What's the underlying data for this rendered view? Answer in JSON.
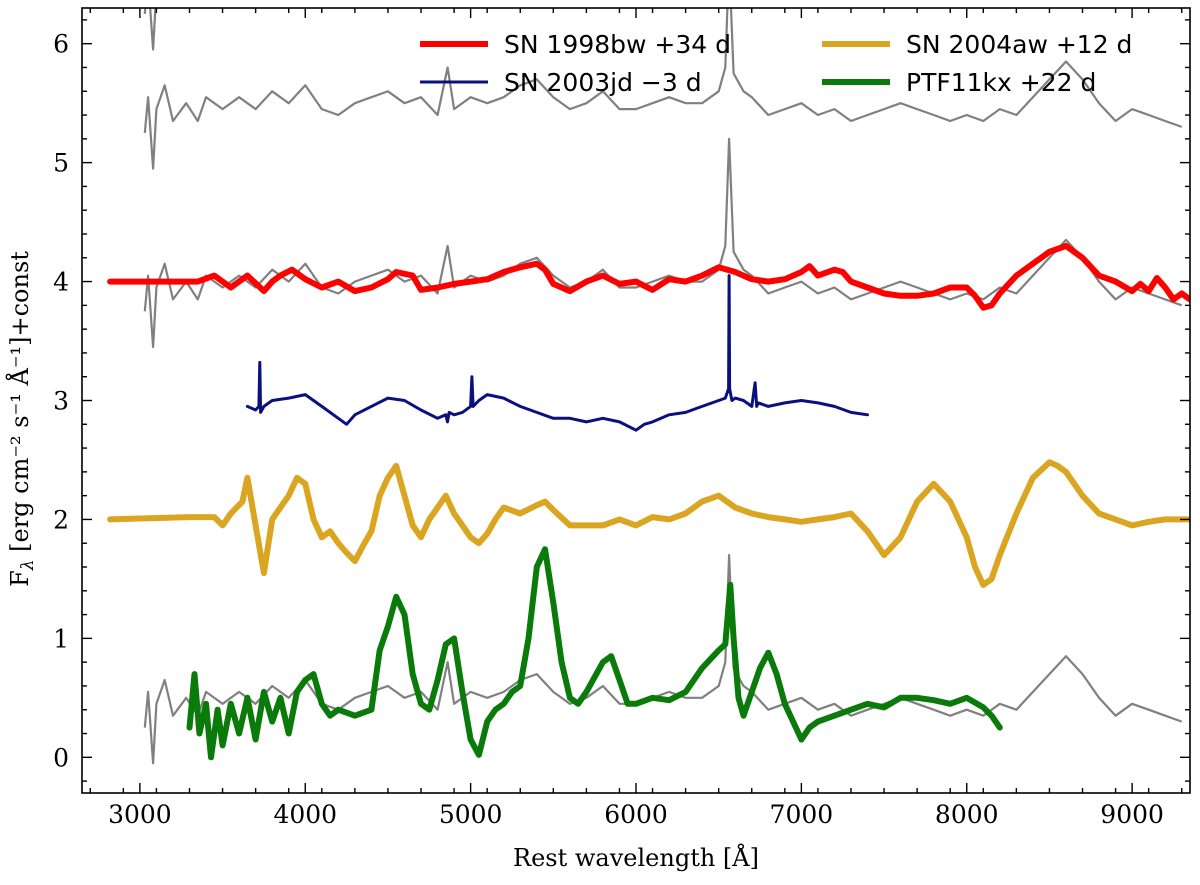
{
  "chart_data": {
    "type": "line",
    "title": "",
    "xlabel": "Rest wavelength [Å]",
    "ylabel_main": "F",
    "ylabel_sub": "λ",
    "ylabel_rest": " [erg cm⁻² s⁻¹ Å⁻¹]+const",
    "xlim": [
      2650,
      9350
    ],
    "ylim": [
      -0.3,
      6.3
    ],
    "x_ticks": [
      3000,
      4000,
      5000,
      6000,
      7000,
      8000,
      9000
    ],
    "x_tick_labels": [
      "3000",
      "4000",
      "5000",
      "6000",
      "7000",
      "8000",
      "9000"
    ],
    "y_ticks": [
      0,
      1,
      2,
      3,
      4,
      5,
      6
    ],
    "y_tick_labels": [
      "0",
      "1",
      "2",
      "3",
      "4",
      "5",
      "6"
    ],
    "legend_position": "top-right",
    "comparison_spectra": {
      "name": "observed spectrum (offset copies)",
      "color": "#808080",
      "offsets": [
        0.0,
        2.5,
        1.5,
        -3.5
      ],
      "x": [
        3030,
        3050,
        3080,
        3100,
        3150,
        3200,
        3280,
        3350,
        3400,
        3500,
        3600,
        3700,
        3800,
        3900,
        4000,
        4100,
        4200,
        4300,
        4400,
        4500,
        4600,
        4700,
        4800,
        4861,
        4900,
        5000,
        5100,
        5200,
        5300,
        5400,
        5500,
        5600,
        5700,
        5800,
        5900,
        6000,
        6100,
        6200,
        6300,
        6400,
        6500,
        6540,
        6563,
        6590,
        6650,
        6700,
        6800,
        6900,
        7000,
        7100,
        7200,
        7300,
        7400,
        7500,
        7600,
        7700,
        7800,
        7900,
        8000,
        8100,
        8200,
        8300,
        8400,
        8500,
        8600,
        8700,
        8800,
        8900,
        9000,
        9100,
        9200,
        9300
      ],
      "y": [
        3.75,
        4.05,
        3.45,
        3.95,
        4.15,
        3.85,
        4.0,
        3.85,
        4.05,
        3.95,
        4.05,
        3.95,
        4.1,
        4.0,
        4.15,
        3.95,
        3.9,
        4.0,
        4.05,
        4.1,
        4.0,
        4.05,
        3.9,
        4.3,
        3.95,
        4.05,
        4.0,
        4.05,
        4.15,
        4.2,
        4.05,
        3.95,
        4.0,
        4.1,
        3.95,
        3.95,
        4.0,
        4.05,
        4.0,
        4.0,
        4.1,
        4.3,
        5.2,
        4.25,
        4.1,
        4.05,
        3.9,
        3.95,
        4.0,
        3.9,
        3.95,
        3.85,
        3.9,
        3.95,
        4.0,
        3.95,
        3.9,
        3.85,
        3.9,
        3.85,
        3.95,
        3.9,
        4.05,
        4.2,
        4.35,
        4.2,
        4.0,
        3.85,
        3.95,
        3.9,
        3.85,
        3.8
      ]
    },
    "series": [
      {
        "name": "SN 1998bw +34 d",
        "color": "#ff0000",
        "stroke_width": 6,
        "x": [
          2820,
          3200,
          3350,
          3450,
          3550,
          3650,
          3750,
          3800,
          3850,
          3920,
          4000,
          4100,
          4200,
          4300,
          4400,
          4500,
          4550,
          4650,
          4700,
          4800,
          4900,
          5000,
          5100,
          5200,
          5300,
          5400,
          5450,
          5500,
          5600,
          5700,
          5800,
          5900,
          6000,
          6100,
          6200,
          6300,
          6400,
          6500,
          6600,
          6700,
          6800,
          6900,
          7000,
          7050,
          7100,
          7200,
          7250,
          7300,
          7400,
          7500,
          7600,
          7700,
          7800,
          7900,
          8000,
          8050,
          8100,
          8150,
          8200,
          8300,
          8400,
          8500,
          8600,
          8700,
          8800,
          8900,
          9000,
          9050,
          9100,
          9150,
          9200,
          9250,
          9300,
          9350
        ],
        "y": [
          4.0,
          4.0,
          4.0,
          4.05,
          3.95,
          4.05,
          3.92,
          4.0,
          4.05,
          4.1,
          4.02,
          3.95,
          4.0,
          3.92,
          3.95,
          4.02,
          4.08,
          4.05,
          3.93,
          3.95,
          3.98,
          4.0,
          4.02,
          4.08,
          4.12,
          4.15,
          4.1,
          3.98,
          3.92,
          4.0,
          4.05,
          3.98,
          4.0,
          3.93,
          4.02,
          4.0,
          4.05,
          4.12,
          4.08,
          4.02,
          4.0,
          4.02,
          4.08,
          4.13,
          4.05,
          4.1,
          4.08,
          4.0,
          3.95,
          3.9,
          3.88,
          3.88,
          3.9,
          3.95,
          3.95,
          3.88,
          3.78,
          3.8,
          3.9,
          4.05,
          4.15,
          4.25,
          4.3,
          4.2,
          4.05,
          4.0,
          3.92,
          3.98,
          3.92,
          4.03,
          3.95,
          3.85,
          3.9,
          3.85
        ]
      },
      {
        "name": "SN 2003jd −3 d",
        "color": "#0a1080",
        "stroke_width": 3,
        "x": [
          3650,
          3700,
          3720,
          3725,
          3730,
          3750,
          3800,
          3900,
          4000,
          4100,
          4200,
          4250,
          4300,
          4400,
          4500,
          4600,
          4700,
          4800,
          4850,
          4860,
          4870,
          4900,
          4950,
          5000,
          5008,
          5015,
          5050,
          5100,
          5200,
          5300,
          5400,
          5500,
          5600,
          5700,
          5800,
          5900,
          6000,
          6050,
          6100,
          6200,
          6300,
          6400,
          6500,
          6540,
          6560,
          6563,
          6566,
          6580,
          6600,
          6650,
          6700,
          6720,
          6730,
          6740,
          6800,
          6900,
          7000,
          7100,
          7200,
          7300,
          7400
        ],
        "y": [
          2.95,
          2.92,
          2.95,
          3.32,
          2.9,
          2.95,
          3.0,
          3.02,
          3.05,
          2.95,
          2.85,
          2.8,
          2.88,
          2.95,
          3.02,
          3.0,
          2.92,
          2.85,
          2.88,
          2.82,
          2.9,
          2.88,
          2.9,
          2.95,
          3.2,
          2.95,
          3.0,
          3.05,
          3.02,
          2.95,
          2.9,
          2.85,
          2.85,
          2.82,
          2.85,
          2.82,
          2.75,
          2.8,
          2.82,
          2.88,
          2.9,
          2.95,
          3.0,
          3.02,
          3.1,
          4.05,
          3.1,
          3.0,
          3.02,
          3.0,
          2.95,
          3.15,
          2.95,
          2.98,
          2.95,
          2.98,
          3.0,
          2.98,
          2.95,
          2.9,
          2.88
        ]
      },
      {
        "name": "SN 2004aw +12 d",
        "color": "#daa520",
        "stroke_width": 6,
        "x": [
          2820,
          3300,
          3450,
          3500,
          3550,
          3620,
          3650,
          3700,
          3750,
          3800,
          3850,
          3900,
          3950,
          4000,
          4050,
          4100,
          4150,
          4200,
          4250,
          4300,
          4350,
          4400,
          4450,
          4500,
          4550,
          4600,
          4650,
          4700,
          4750,
          4800,
          4850,
          4900,
          4950,
          5000,
          5050,
          5100,
          5150,
          5200,
          5300,
          5400,
          5450,
          5500,
          5600,
          5700,
          5800,
          5900,
          6000,
          6100,
          6200,
          6300,
          6400,
          6500,
          6600,
          6700,
          6800,
          6900,
          7000,
          7100,
          7200,
          7300,
          7400,
          7500,
          7600,
          7700,
          7800,
          7900,
          8000,
          8050,
          8100,
          8150,
          8200,
          8300,
          8400,
          8500,
          8550,
          8600,
          8700,
          8800,
          8900,
          9000,
          9100,
          9200,
          9300,
          9350
        ],
        "y": [
          2.0,
          2.02,
          2.02,
          1.95,
          2.05,
          2.15,
          2.35,
          1.95,
          1.55,
          2.0,
          2.1,
          2.2,
          2.35,
          2.3,
          2.0,
          1.85,
          1.9,
          1.8,
          1.72,
          1.65,
          1.78,
          1.9,
          2.2,
          2.35,
          2.45,
          2.2,
          1.95,
          1.85,
          2.0,
          2.1,
          2.2,
          2.05,
          1.95,
          1.85,
          1.8,
          1.88,
          2.0,
          2.1,
          2.05,
          2.12,
          2.15,
          2.08,
          1.95,
          1.95,
          1.95,
          2.0,
          1.95,
          2.02,
          2.0,
          2.05,
          2.15,
          2.2,
          2.1,
          2.05,
          2.02,
          2.0,
          1.98,
          2.0,
          2.02,
          2.05,
          1.9,
          1.7,
          1.85,
          2.15,
          2.3,
          2.15,
          1.85,
          1.6,
          1.45,
          1.5,
          1.7,
          2.05,
          2.35,
          2.48,
          2.45,
          2.4,
          2.2,
          2.05,
          2.0,
          1.95,
          1.98,
          2.0,
          2.0,
          2.0
        ]
      },
      {
        "name": "PTF11kx +22 d",
        "color": "#0a7a0a",
        "stroke_width": 6,
        "x": [
          3300,
          3330,
          3360,
          3400,
          3430,
          3470,
          3500,
          3550,
          3600,
          3650,
          3700,
          3750,
          3800,
          3850,
          3900,
          3950,
          4000,
          4050,
          4100,
          4150,
          4200,
          4300,
          4400,
          4450,
          4500,
          4550,
          4600,
          4650,
          4700,
          4750,
          4800,
          4850,
          4900,
          4950,
          5000,
          5050,
          5100,
          5150,
          5200,
          5250,
          5300,
          5350,
          5400,
          5450,
          5500,
          5550,
          5600,
          5650,
          5700,
          5800,
          5850,
          5900,
          5950,
          6000,
          6100,
          6200,
          6300,
          6400,
          6500,
          6540,
          6570,
          6590,
          6620,
          6650,
          6700,
          6750,
          6800,
          6850,
          6900,
          6950,
          7000,
          7050,
          7100,
          7200,
          7300,
          7400,
          7500,
          7600,
          7700,
          7800,
          7900,
          8000,
          8100,
          8150,
          8200
        ],
        "y": [
          0.25,
          0.7,
          0.2,
          0.45,
          0.0,
          0.4,
          0.1,
          0.45,
          0.2,
          0.5,
          0.15,
          0.55,
          0.3,
          0.5,
          0.2,
          0.55,
          0.65,
          0.7,
          0.45,
          0.35,
          0.4,
          0.35,
          0.4,
          0.9,
          1.1,
          1.35,
          1.2,
          0.7,
          0.45,
          0.4,
          0.65,
          0.95,
          1.0,
          0.55,
          0.15,
          0.02,
          0.3,
          0.4,
          0.45,
          0.55,
          0.6,
          1.0,
          1.6,
          1.75,
          1.3,
          0.8,
          0.5,
          0.45,
          0.55,
          0.8,
          0.85,
          0.65,
          0.45,
          0.45,
          0.5,
          0.48,
          0.55,
          0.75,
          0.9,
          0.95,
          1.45,
          1.0,
          0.5,
          0.35,
          0.55,
          0.75,
          0.88,
          0.7,
          0.45,
          0.3,
          0.15,
          0.25,
          0.3,
          0.35,
          0.4,
          0.45,
          0.42,
          0.5,
          0.5,
          0.48,
          0.45,
          0.5,
          0.42,
          0.35,
          0.25
        ]
      }
    ]
  }
}
